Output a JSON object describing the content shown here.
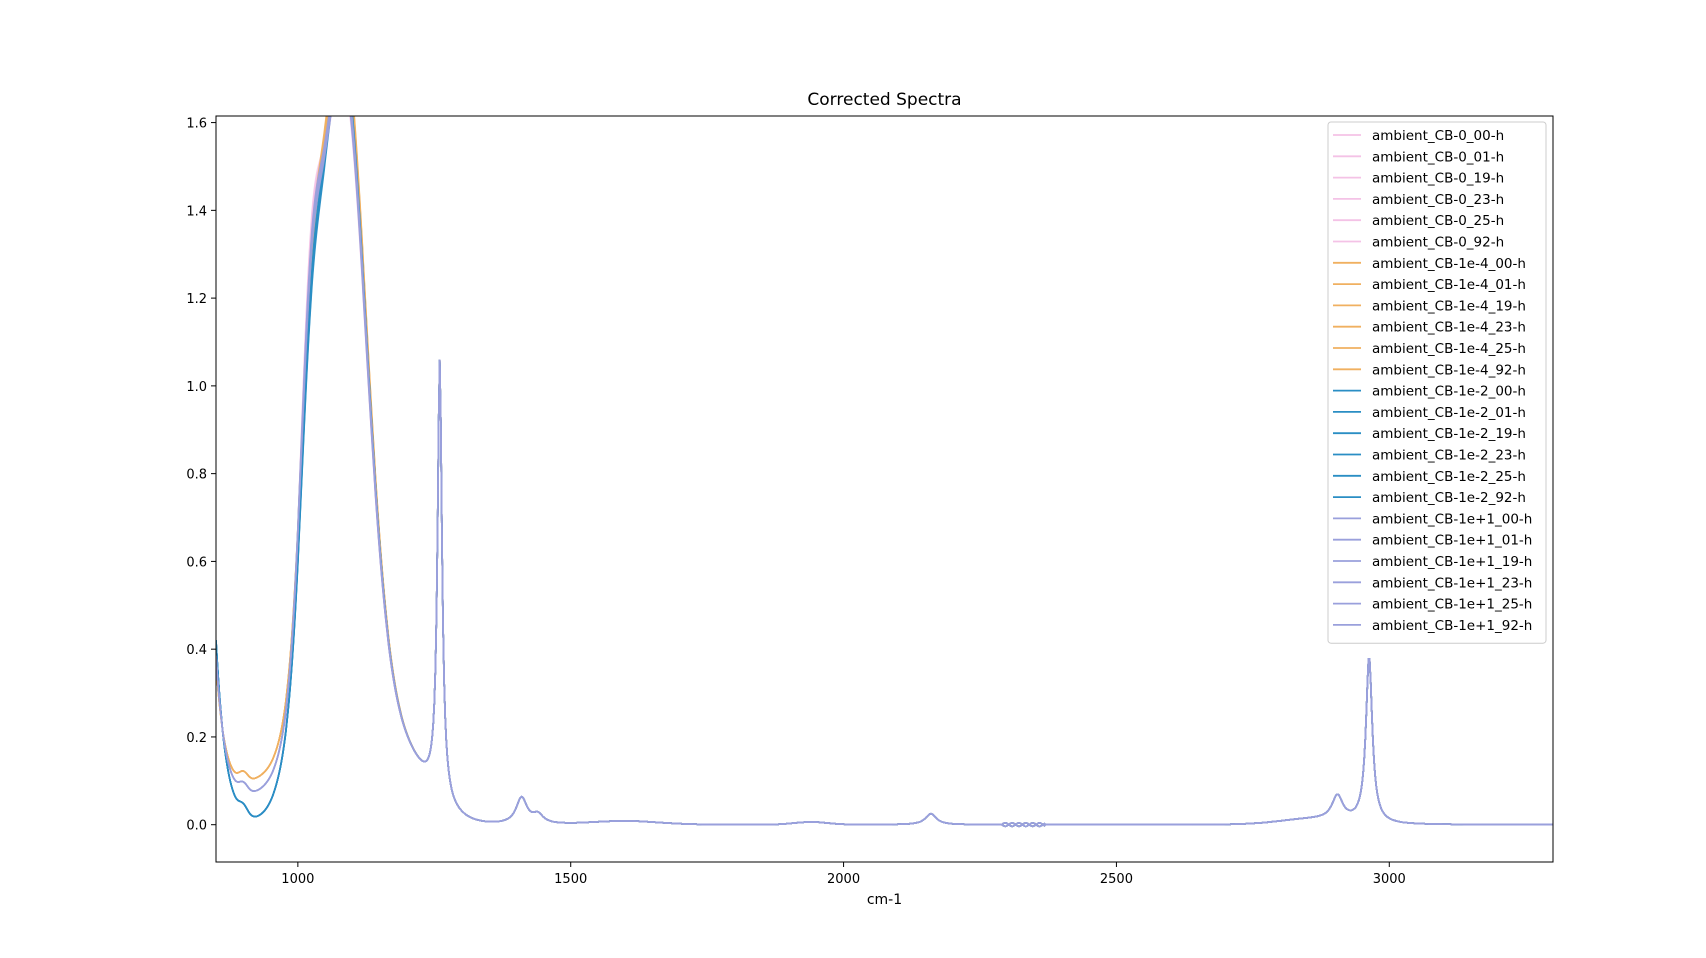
{
  "chart_data": {
    "type": "line",
    "title": "Corrected Spectra",
    "xlabel": "cm-1",
    "ylabel": "",
    "xlim": [
      850,
      3300
    ],
    "ylim": [
      -0.085,
      1.615
    ],
    "xticks": [
      1000,
      1500,
      2000,
      2500,
      3000
    ],
    "yticks": [
      0.0,
      0.2,
      0.4,
      0.6,
      0.8,
      1.0,
      1.2,
      1.4,
      1.6
    ],
    "grid": false,
    "legend_position": "top-right",
    "groups": [
      {
        "prefix": "ambient_CB-0",
        "color": "#f4c2e6",
        "peak_main": 1.32,
        "peak_1020": 1.03,
        "low_930": 0.0,
        "opacity": 0.75
      },
      {
        "prefix": "ambient_CB-1e-4",
        "color": "#f0b060",
        "peak_main": 1.4,
        "peak_1020": 0.92,
        "low_930": 0.09,
        "opacity": 0.85
      },
      {
        "prefix": "ambient_CB-1e-2",
        "color": "#2a8ec4",
        "peak_main": 1.35,
        "peak_1020": 0.89,
        "low_930": 0.0,
        "opacity": 0.9
      },
      {
        "prefix": "ambient_CB-1e+1",
        "color": "#9aa0dc",
        "peak_main": 1.33,
        "peak_1020": 0.97,
        "low_930": 0.06,
        "opacity": 0.9
      }
    ],
    "series": [
      {
        "name": "ambient_CB-0_00-h",
        "group": 0
      },
      {
        "name": "ambient_CB-0_01-h",
        "group": 0
      },
      {
        "name": "ambient_CB-0_19-h",
        "group": 0
      },
      {
        "name": "ambient_CB-0_23-h",
        "group": 0
      },
      {
        "name": "ambient_CB-0_25-h",
        "group": 0
      },
      {
        "name": "ambient_CB-0_92-h",
        "group": 0
      },
      {
        "name": "ambient_CB-1e-4_00-h",
        "group": 1
      },
      {
        "name": "ambient_CB-1e-4_01-h",
        "group": 1
      },
      {
        "name": "ambient_CB-1e-4_19-h",
        "group": 1
      },
      {
        "name": "ambient_CB-1e-4_23-h",
        "group": 1
      },
      {
        "name": "ambient_CB-1e-4_25-h",
        "group": 1
      },
      {
        "name": "ambient_CB-1e-4_92-h",
        "group": 1
      },
      {
        "name": "ambient_CB-1e-2_00-h",
        "group": 2
      },
      {
        "name": "ambient_CB-1e-2_01-h",
        "group": 2
      },
      {
        "name": "ambient_CB-1e-2_19-h",
        "group": 2
      },
      {
        "name": "ambient_CB-1e-2_23-h",
        "group": 2
      },
      {
        "name": "ambient_CB-1e-2_25-h",
        "group": 2
      },
      {
        "name": "ambient_CB-1e-2_92-h",
        "group": 2
      },
      {
        "name": "ambient_CB-1e+1_00-h",
        "group": 3
      },
      {
        "name": "ambient_CB-1e+1_01-h",
        "group": 3
      },
      {
        "name": "ambient_CB-1e+1_19-h",
        "group": 3
      },
      {
        "name": "ambient_CB-1e+1_23-h",
        "group": 3
      },
      {
        "name": "ambient_CB-1e+1_25-h",
        "group": 3
      },
      {
        "name": "ambient_CB-1e+1_92-h",
        "group": 3
      }
    ],
    "common_peaks": [
      {
        "x": 1260,
        "height": 1.0
      },
      {
        "x": 1410,
        "height": 0.06
      },
      {
        "x": 1440,
        "height": 0.02
      },
      {
        "x": 2160,
        "height": 0.025
      },
      {
        "x": 2905,
        "height": 0.055
      },
      {
        "x": 2963,
        "height": 0.38
      }
    ]
  }
}
